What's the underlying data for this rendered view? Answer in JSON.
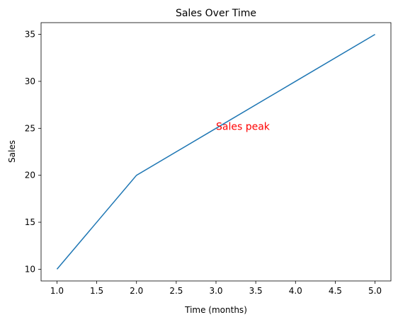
{
  "chart_data": {
    "type": "line",
    "title": "Sales Over Time",
    "xlabel": "Time (months)",
    "ylabel": "Sales",
    "x": [
      1,
      2,
      3,
      4,
      5
    ],
    "series": [
      {
        "name": "Sales",
        "color": "#1f77b4",
        "values": [
          10,
          20,
          25,
          30,
          35
        ]
      }
    ],
    "xlim": [
      0.8,
      5.2
    ],
    "xticks": [
      {
        "value": 1,
        "label": "1.0"
      },
      {
        "value": 1.5,
        "label": "1.5"
      },
      {
        "value": 2,
        "label": "2.0"
      },
      {
        "value": 2.5,
        "label": "2.5"
      },
      {
        "value": 3,
        "label": "3.0"
      },
      {
        "value": 3.5,
        "label": "3.5"
      },
      {
        "value": 4,
        "label": "4.0"
      },
      {
        "value": 4.5,
        "label": "4.5"
      },
      {
        "value": 5,
        "label": "5.0"
      }
    ],
    "ylim": [
      8.75,
      36.25
    ],
    "yticks": [
      10,
      15,
      20,
      25,
      30,
      35
    ],
    "annotations": [
      {
        "text": "Sales peak",
        "x": 3,
        "y": 25,
        "color": "red"
      }
    ],
    "grid": false
  }
}
